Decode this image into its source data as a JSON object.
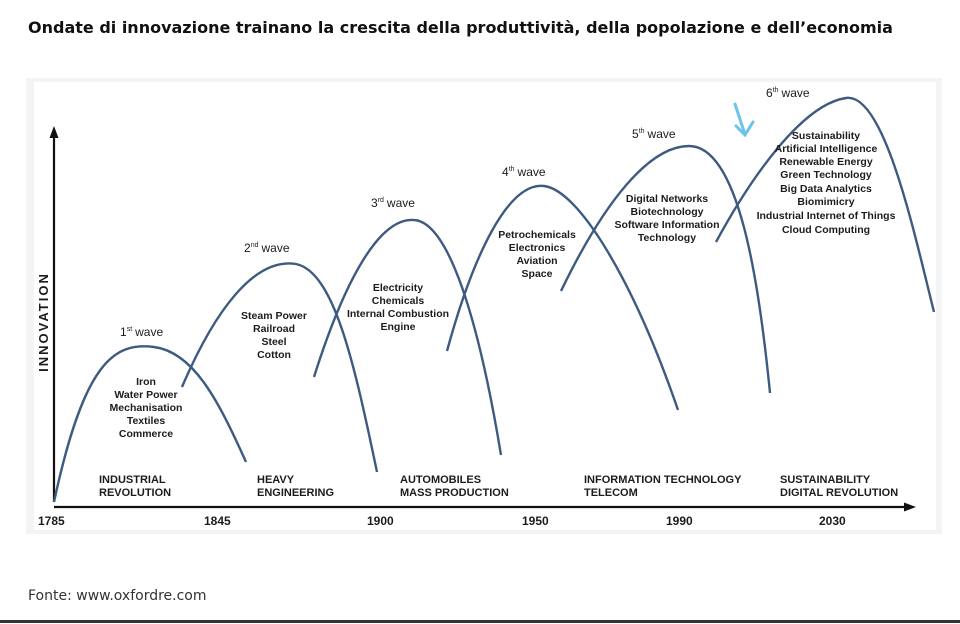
{
  "title": "Ondate di innovazione trainano la crescita della produttività, della popolazione e dell’economia",
  "source": "Fonte: www.oxfordre.com",
  "y_axis_label": "INNOVATION",
  "years": [
    "1785",
    "1845",
    "1900",
    "1950",
    "1990",
    "2030"
  ],
  "waves": [
    {
      "ordinal": "1",
      "suffix": "st",
      "word": "wave",
      "technologies": [
        "Iron",
        "Water Power",
        "Mechanisation",
        "Textiles",
        "Commerce"
      ],
      "era": [
        "INDUSTRIAL",
        "REVOLUTION"
      ]
    },
    {
      "ordinal": "2",
      "suffix": "nd",
      "word": "wave",
      "technologies": [
        "Steam Power",
        "Railroad",
        "Steel",
        "Cotton"
      ],
      "era": [
        "HEAVY",
        "ENGINEERING"
      ]
    },
    {
      "ordinal": "3",
      "suffix": "rd",
      "word": "wave",
      "technologies": [
        "Electricity",
        "Chemicals",
        "Internal Combustion",
        "Engine"
      ],
      "era": [
        "AUTOMOBILES",
        "MASS PRODUCTION"
      ]
    },
    {
      "ordinal": "4",
      "suffix": "th",
      "word": "wave",
      "technologies": [
        "Petrochemicals",
        "Electronics",
        "Aviation",
        "Space"
      ],
      "era": []
    },
    {
      "ordinal": "5",
      "suffix": "th",
      "word": "wave",
      "technologies": [
        "Digital Networks",
        "Biotechnology",
        "Software Information",
        "Technology"
      ],
      "era": [
        "INFORMATION TECHNOLOGY",
        "TELECOM"
      ]
    },
    {
      "ordinal": "6",
      "suffix": "th",
      "word": "wave",
      "technologies": [
        "Sustainability",
        "Artificial Intelligence",
        "Renewable Energy",
        "Green Technology",
        "Big Data Analytics",
        "Biomimicry",
        "Industrial Internet of Things",
        "Cloud Computing"
      ],
      "era": [
        "SUSTAINABILITY",
        "DIGITAL REVOLUTION"
      ]
    }
  ],
  "colors": {
    "curve": "#3d5a80",
    "axis": "#111111",
    "arrow": "#6ec3ec"
  }
}
